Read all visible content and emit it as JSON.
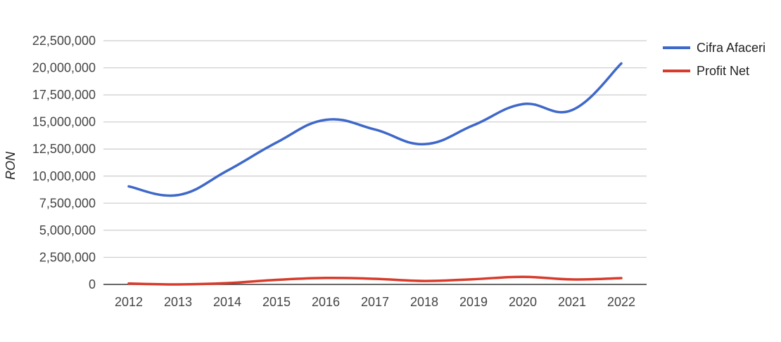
{
  "chart_data": {
    "type": "line",
    "x": [
      "2012",
      "2013",
      "2014",
      "2015",
      "2016",
      "2017",
      "2018",
      "2019",
      "2020",
      "2021",
      "2022"
    ],
    "series": [
      {
        "name": "Cifra Afaceri",
        "color": "#3e68c9",
        "values": [
          9050000,
          8250000,
          10500000,
          13100000,
          15200000,
          14300000,
          12950000,
          14700000,
          16650000,
          16100000,
          20400000
        ]
      },
      {
        "name": "Profit Net",
        "color": "#d83b2b",
        "values": [
          80000,
          0,
          120000,
          420000,
          600000,
          520000,
          320000,
          480000,
          700000,
          460000,
          580000
        ]
      }
    ],
    "ylabel": "RON",
    "xlabel": "",
    "ylim": [
      0,
      22500000
    ],
    "y_ticks": [
      "0",
      "2,500,000",
      "5,000,000",
      "7,500,000",
      "10,000,000",
      "12,500,000",
      "15,000,000",
      "17,500,000",
      "20,000,000",
      "22,500,000"
    ],
    "grid": true,
    "legend_position": "right"
  }
}
